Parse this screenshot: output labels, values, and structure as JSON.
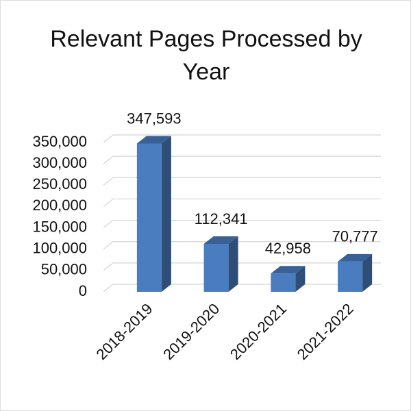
{
  "chart_data": {
    "type": "bar3d",
    "title": "Relevant Pages Processed by Year",
    "categories": [
      "2018-2019",
      "2019-2020",
      "2020-2021",
      "2021-2022"
    ],
    "values": [
      347593,
      112341,
      42958,
      70777
    ],
    "value_labels": [
      "347,593",
      "112,341",
      "42,958",
      "70,777"
    ],
    "color": "#4a7cc0",
    "ylim": [
      0,
      350000
    ],
    "yticks": [
      0,
      {
        "value": 50000,
        "label": "50,000"
      },
      {
        "value": 100000,
        "label": "100,000"
      },
      {
        "value": 150000,
        "label": "150,000"
      },
      {
        "value": 200000,
        "label": "200,000"
      },
      {
        "value": 250000,
        "label": "250,000"
      },
      {
        "value": 300000,
        "label": "300,000"
      },
      {
        "value": 350000,
        "label": "350,000"
      }
    ],
    "grid": true
  }
}
